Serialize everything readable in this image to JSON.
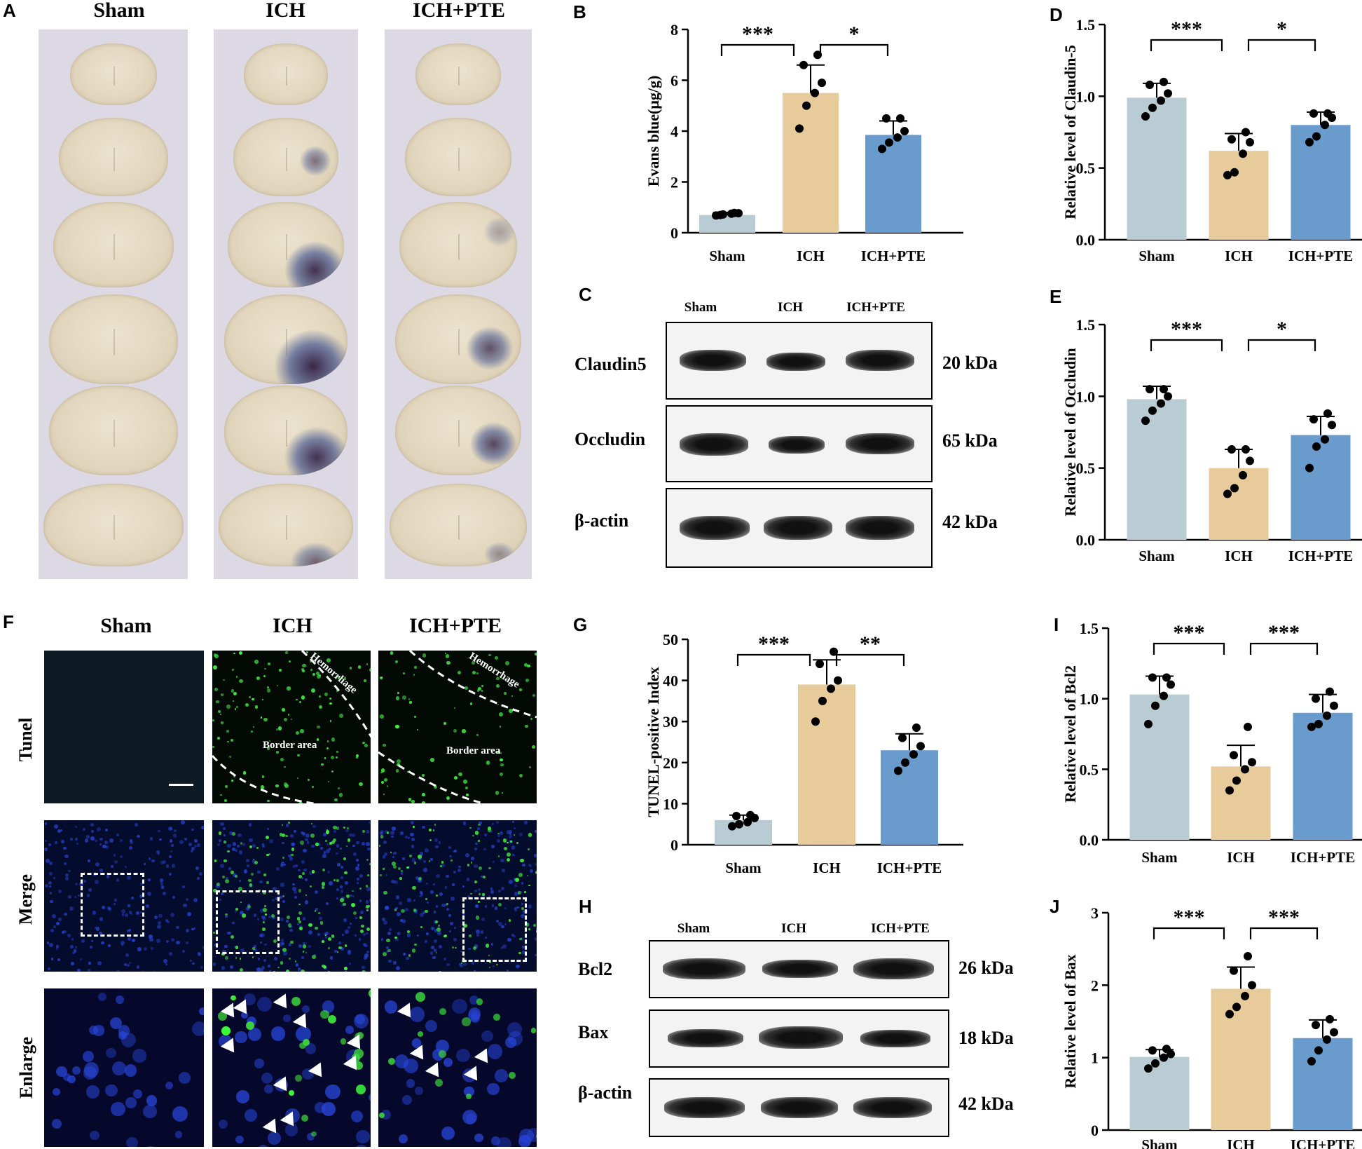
{
  "panels": {
    "A": {
      "label": "A",
      "groups": [
        "Sham",
        "ICH",
        "ICH+PTE"
      ]
    },
    "F": {
      "label": "F",
      "groups": [
        "Sham",
        "ICH",
        "ICH+PTE"
      ],
      "rows": [
        "Tunel",
        "Merge",
        "Enlarge"
      ],
      "annotations": {
        "hemorrhage": "Hemorrhage",
        "border": "Border area"
      }
    },
    "C": {
      "label": "C",
      "lanes": [
        "Sham",
        "ICH",
        "ICH+PTE"
      ],
      "rows": [
        {
          "name": "Claudin5",
          "kda": "20 kDa"
        },
        {
          "name": "Occludin",
          "kda": "65 kDa"
        },
        {
          "name": "β-actin",
          "kda": "42 kDa"
        }
      ]
    },
    "H": {
      "label": "H",
      "lanes": [
        "Sham",
        "ICH",
        "ICH+PTE"
      ],
      "rows": [
        {
          "name": "Bcl2",
          "kda": "26 kDa"
        },
        {
          "name": "Bax",
          "kda": "18 kDa"
        },
        {
          "name": "β-actin",
          "kda": "42 kDa"
        }
      ]
    }
  },
  "colors": {
    "sham": "#b9cbd3",
    "ich": "#e7cb9a",
    "pte": "#6a9bcd"
  },
  "chart_data": [
    {
      "id": "B",
      "type": "bar",
      "categories": [
        "Sham",
        "ICH",
        "ICH+PTE"
      ],
      "values": [
        0.7,
        5.5,
        3.85
      ],
      "errors": [
        0.1,
        1.1,
        0.55
      ],
      "points": [
        [
          0.68,
          0.72,
          0.75,
          0.77,
          0.7,
          0.78
        ],
        [
          4.1,
          5.0,
          5.5,
          5.9,
          6.6,
          7.0
        ],
        [
          3.3,
          3.55,
          3.75,
          4.0,
          4.5,
          4.5
        ]
      ],
      "ylabel": "Evans blue(μg/g)",
      "ylim": [
        0,
        8
      ],
      "yticks": [
        0,
        2,
        4,
        6,
        8
      ],
      "sig": [
        {
          "from": 0,
          "to": 1,
          "text": "***"
        },
        {
          "from": 1,
          "to": 2,
          "text": "*"
        }
      ]
    },
    {
      "id": "D",
      "type": "bar",
      "categories": [
        "Sham",
        "ICH",
        "ICH+PTE"
      ],
      "values": [
        0.99,
        0.62,
        0.8
      ],
      "errors": [
        0.1,
        0.12,
        0.09
      ],
      "points": [
        [
          0.86,
          0.92,
          0.97,
          1.02,
          1.08,
          1.1
        ],
        [
          0.45,
          0.47,
          0.6,
          0.68,
          0.7,
          0.75
        ],
        [
          0.68,
          0.72,
          0.8,
          0.85,
          0.88,
          0.88
        ]
      ],
      "ylabel": "Relative level of Claudin-5",
      "ylim": [
        0,
        1.5
      ],
      "yticks": [
        0.0,
        0.5,
        1.0,
        1.5
      ],
      "sig": [
        {
          "from": 0,
          "to": 1,
          "text": "***"
        },
        {
          "from": 1,
          "to": 2,
          "text": "*"
        }
      ]
    },
    {
      "id": "E",
      "type": "bar",
      "categories": [
        "Sham",
        "ICH",
        "ICH+PTE"
      ],
      "values": [
        0.98,
        0.5,
        0.73
      ],
      "errors": [
        0.09,
        0.13,
        0.13
      ],
      "points": [
        [
          0.83,
          0.9,
          0.95,
          1.0,
          1.05,
          1.05
        ],
        [
          0.32,
          0.36,
          0.45,
          0.55,
          0.63,
          0.63
        ],
        [
          0.5,
          0.65,
          0.7,
          0.8,
          0.84,
          0.88
        ]
      ],
      "ylabel": "Relative level of Occludin",
      "ylim": [
        0,
        1.5
      ],
      "yticks": [
        0.0,
        0.5,
        1.0,
        1.5
      ],
      "sig": [
        {
          "from": 0,
          "to": 1,
          "text": "***"
        },
        {
          "from": 1,
          "to": 2,
          "text": "*"
        }
      ]
    },
    {
      "id": "G",
      "type": "bar",
      "categories": [
        "Sham",
        "ICH",
        "ICH+PTE"
      ],
      "values": [
        6,
        39,
        23
      ],
      "errors": [
        1.2,
        6,
        4
      ],
      "points": [
        [
          4.5,
          5,
          5.5,
          6.5,
          7,
          7.2
        ],
        [
          30,
          35,
          38,
          40,
          44,
          47
        ],
        [
          18,
          20,
          22,
          24,
          26,
          28.5
        ]
      ],
      "ylabel": "TUNEL-positive Index",
      "ylim": [
        0,
        50
      ],
      "yticks": [
        0,
        10,
        20,
        30,
        40,
        50
      ],
      "sig": [
        {
          "from": 0,
          "to": 1,
          "text": "***"
        },
        {
          "from": 1,
          "to": 2,
          "text": "**"
        }
      ]
    },
    {
      "id": "I",
      "type": "bar",
      "categories": [
        "Sham",
        "ICH",
        "ICH+PTE"
      ],
      "values": [
        1.03,
        0.52,
        0.9
      ],
      "errors": [
        0.13,
        0.15,
        0.13
      ],
      "points": [
        [
          0.82,
          0.95,
          1.02,
          1.1,
          1.15,
          1.15
        ],
        [
          0.35,
          0.42,
          0.5,
          0.55,
          0.6,
          0.8
        ],
        [
          0.8,
          0.82,
          0.88,
          0.95,
          1.0,
          1.05
        ]
      ],
      "ylabel": "Relative level of Bcl2",
      "ylim": [
        0,
        1.5
      ],
      "yticks": [
        0.0,
        0.5,
        1.0,
        1.5
      ],
      "sig": [
        {
          "from": 0,
          "to": 1,
          "text": "***"
        },
        {
          "from": 1,
          "to": 2,
          "text": "***"
        }
      ]
    },
    {
      "id": "J",
      "type": "bar",
      "categories": [
        "Sham",
        "ICH",
        "ICH+PTE"
      ],
      "values": [
        1.01,
        1.95,
        1.27
      ],
      "errors": [
        0.1,
        0.3,
        0.25
      ],
      "points": [
        [
          0.85,
          0.92,
          1.0,
          1.05,
          1.1,
          1.12
        ],
        [
          1.6,
          1.7,
          1.85,
          2.0,
          2.2,
          2.4
        ],
        [
          0.95,
          1.1,
          1.25,
          1.35,
          1.45,
          1.53
        ]
      ],
      "ylabel": "Relative level of Bax",
      "ylim": [
        0,
        3
      ],
      "yticks": [
        0,
        1,
        2,
        3
      ],
      "sig": [
        {
          "from": 0,
          "to": 1,
          "text": "***"
        },
        {
          "from": 1,
          "to": 2,
          "text": "***"
        }
      ]
    }
  ]
}
